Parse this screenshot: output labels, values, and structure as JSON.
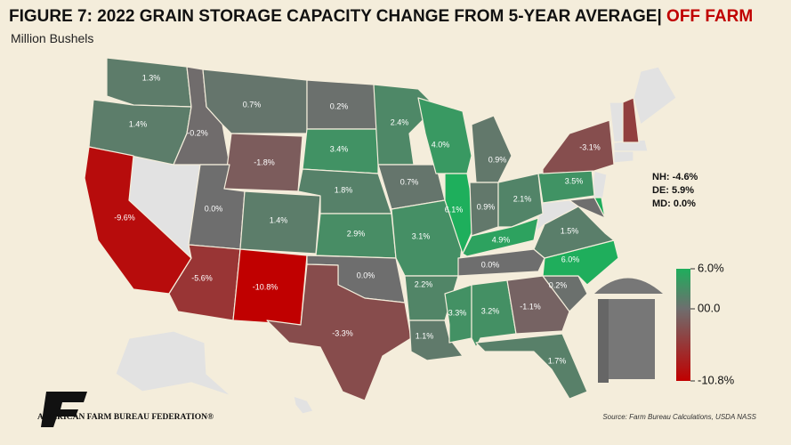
{
  "chart_data": {
    "type": "choropleth",
    "title": "FIGURE 7: 2022 GRAIN STORAGE CAPACITY CHANGE FROM 5-YEAR AVERAGE|",
    "title_highlight": "OFF FARM",
    "subtitle": "Million Bushels",
    "values": [
      1.3,
      1.4,
      -9.6,
      -0.2,
      0.7,
      -1.8,
      0.0,
      -5.6,
      1.4,
      -10.8,
      0.2,
      3.4,
      1.8,
      2.9,
      0.0,
      -3.3,
      2.4,
      0.7,
      3.1,
      2.2,
      1.1,
      4.0,
      6.1,
      0.9,
      0.9,
      2.1,
      4.9,
      0.0,
      3.3,
      3.2,
      -1.1,
      1.7,
      0.2,
      6.0,
      1.5,
      3.5,
      -3.1,
      -4.6,
      5.9,
      0.0
    ],
    "value_labels": [
      "1.3%",
      "1.4%",
      "-9.6%",
      "-0.2%",
      "0.7%",
      "-1.8%",
      "0.0%",
      "-5.6%",
      "1.4%",
      "-10.8%",
      "0.2%",
      "3.4%",
      "1.8%",
      "2.9%",
      "0.0%",
      "-3.3%",
      "2.4%",
      "0.7%",
      "3.1%",
      "2.2%",
      "1.1%",
      "4.0%",
      "6.1%",
      "0.9%",
      "0.9%",
      "2.1%",
      "4.9%",
      "0.0%",
      "3.3%",
      "3.2%",
      "-1.1%",
      "1.7%",
      "0.2%",
      "6.0%",
      "1.5%",
      "3.5%",
      "-3.1%",
      "NH: -4.6%",
      "DE: 5.9%",
      "MD: 0.0%"
    ],
    "colorlim": [
      -10.8,
      6.0
    ],
    "colorticks": [
      {
        "value": 6.0,
        "label": "6.0%"
      },
      {
        "value": 0,
        "label": "00.0"
      },
      {
        "value": -10.8,
        "label": "-10.8%"
      }
    ],
    "colors": {
      "low": "#c00000",
      "mid": "#6e6e6e",
      "high": "#1fae5c"
    },
    "source": "Source: Farm Bureau Calculations, USDA NASS",
    "organization": "AMERICAN FARM BUREAU FEDERATION®"
  }
}
